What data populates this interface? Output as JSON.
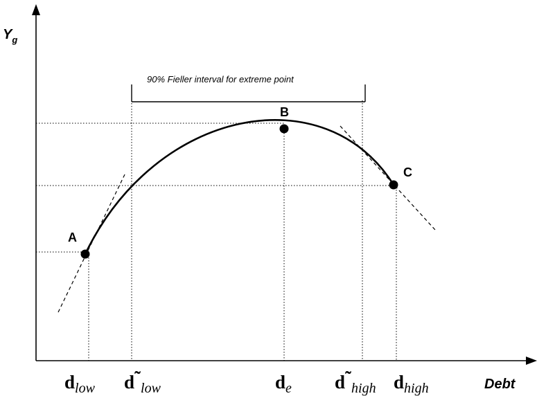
{
  "diagram": {
    "y_axis_title": "Y",
    "y_axis_subscript": "g",
    "x_axis_title": "Debt",
    "interval_label": "90% Fieller interval for extreme point",
    "points": [
      {
        "id": "A",
        "label": "A"
      },
      {
        "id": "B",
        "label": "B"
      },
      {
        "id": "C",
        "label": "C"
      }
    ],
    "x_ticks": [
      {
        "id": "d-low",
        "main": "d",
        "tilde": "",
        "sub": "low"
      },
      {
        "id": "d-tilde-low",
        "main": "d",
        "tilde": "˜",
        "sub": "low"
      },
      {
        "id": "d-e",
        "main": "d",
        "tilde": "",
        "sub": "e"
      },
      {
        "id": "d-tilde-high",
        "main": "d",
        "tilde": "˜",
        "sub": "high"
      },
      {
        "id": "d-high",
        "main": "d",
        "tilde": "",
        "sub": "high"
      }
    ]
  }
}
